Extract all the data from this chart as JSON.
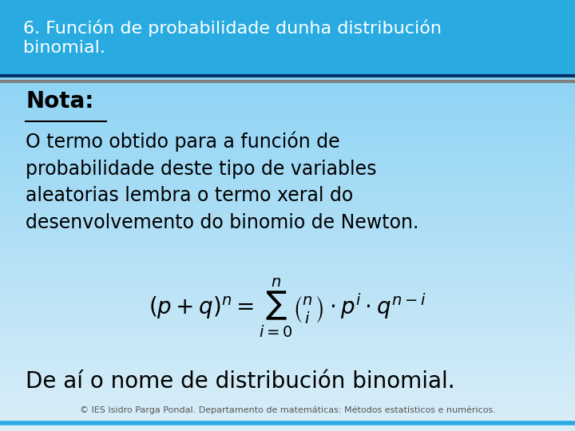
{
  "title": "6. Función de probabilidade dunha distribución\nbinomial.",
  "title_color": "#ffffff",
  "title_bg_color": "#29abe2",
  "separator_color1": "#003366",
  "separator_color2": "#808080",
  "body_bg_top": "#7ecef4",
  "body_bg_bottom": "#daeef8",
  "nota_text": "Nota:",
  "nota_color": "#000000",
  "nota_fontsize": 20,
  "body_text1": "O termo obtido para a función de\nprobabilidade deste tipo de variables\naleatorias lembra o termo xeral do\ndesenvolvemento do binomio de Newton.",
  "body_text1_color": "#000000",
  "body_text1_fontsize": 17,
  "formula": "$(p+q)^n = \\sum_{i=0}^{n} \\binom{n}{i} \\cdot p^i \\cdot q^{n-i}$",
  "formula_fontsize": 20,
  "body_text2": "De aí o nome de distribución binomial.",
  "body_text2_color": "#000000",
  "body_text2_fontsize": 20,
  "footer_text": "© IES Isidro Parga Pondal. Departamento de matemáticas: Métodos estatísticos e numéricos.",
  "footer_color": "#555555",
  "footer_fontsize": 8,
  "footer_bar_color": "#29abe2",
  "title_fontsize": 16
}
